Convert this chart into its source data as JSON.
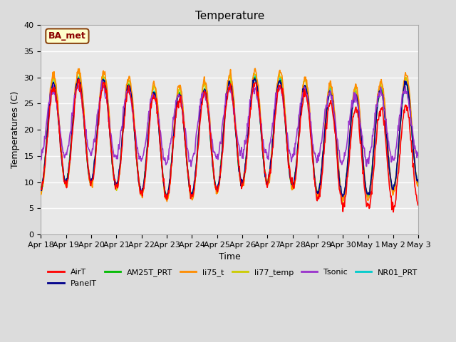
{
  "title": "Temperature",
  "ylabel": "Temperatures (C)",
  "xlabel": "Time",
  "ylim": [
    0,
    40
  ],
  "yticks": [
    0,
    5,
    10,
    15,
    20,
    25,
    30,
    35,
    40
  ],
  "xtick_labels": [
    "Apr 18",
    "Apr 19",
    "Apr 20",
    "Apr 21",
    "Apr 22",
    "Apr 23",
    "Apr 24",
    "Apr 25",
    "Apr 26",
    "Apr 27",
    "Apr 28",
    "Apr 29",
    "Apr 30",
    "May 1",
    "May 2",
    "May 3"
  ],
  "annotation_text": "BA_met",
  "annotation_bg": "#ffffcc",
  "annotation_border": "#8B4513",
  "annotation_text_color": "#8B0000",
  "series": {
    "AirT": {
      "color": "#FF0000",
      "lw": 1.2
    },
    "PanelT": {
      "color": "#00008B",
      "lw": 1.2
    },
    "AM25T_PRT": {
      "color": "#00BB00",
      "lw": 1.2
    },
    "li75_t": {
      "color": "#FF8C00",
      "lw": 1.2
    },
    "li77_temp": {
      "color": "#CCCC00",
      "lw": 1.2
    },
    "Tsonic": {
      "color": "#9932CC",
      "lw": 1.2
    },
    "NR01_PRT": {
      "color": "#00CCCC",
      "lw": 1.2
    }
  },
  "fig_bg": "#DCDCDC",
  "plot_bg": "#E8E8E8",
  "grid_color": "#FFFFFF",
  "grid_lw": 1.0,
  "title_fontsize": 11,
  "label_fontsize": 9,
  "tick_fontsize": 8,
  "legend_fontsize": 8
}
